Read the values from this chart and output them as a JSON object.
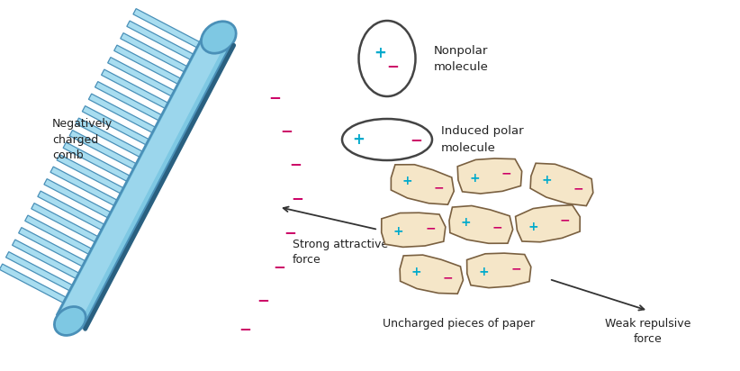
{
  "bg_color": "#ffffff",
  "comb_fill": "#7ec8e3",
  "comb_fill_inner": "#a8ddf0",
  "comb_edge": "#4a90b8",
  "comb_dark_edge": "#2a6080",
  "paper_fill": "#f5e6c8",
  "paper_edge": "#7a6040",
  "plus_color": "#00aacc",
  "minus_color": "#cc0066",
  "text_color": "#222222",
  "arrow_color": "#333333",
  "label_comb": "Negatively\ncharged\ncomb",
  "label_strong": "Strong attractive\nforce",
  "label_nonpolar": "Nonpolar\nmolecule",
  "label_induced": "Induced polar\nmolecule",
  "label_uncharged": "Uncharged pieces of paper",
  "label_weak": "Weak repulsive\nforce",
  "neg_sign": "−",
  "plus_sign": "+"
}
